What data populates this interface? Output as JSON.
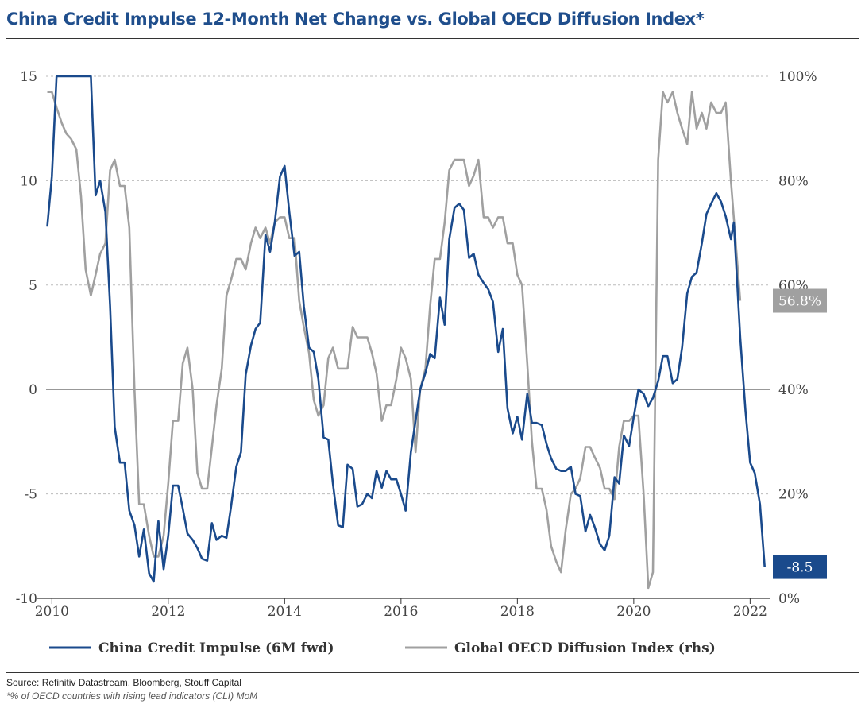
{
  "title": "China Credit Impulse 12-Month Net Change vs. Global OECD Diffusion Index*",
  "source": "Source: Refinitiv Datastream, Bloomberg, Stouff Capital",
  "footnote": "*% of OECD countries with rising lead indicators (CLI) MoM",
  "chart_data": {
    "type": "line",
    "title": "China Credit Impulse 12-Month Net Change vs. Global OECD Diffusion Index*",
    "x_ticks": [
      "2010",
      "2012",
      "2014",
      "2016",
      "2018",
      "2020",
      "2022"
    ],
    "y_left": {
      "range": [
        -10,
        15
      ],
      "ticks": [
        "15",
        "10",
        "5",
        "0",
        "-5",
        "-10"
      ]
    },
    "y_right": {
      "range": [
        0,
        100
      ],
      "ticks": [
        "100%",
        "80%",
        "60%",
        "40%",
        "20%",
        "0%"
      ]
    },
    "grid": true,
    "legend_position": "bottom",
    "colors": {
      "credit": "#1a4a8c",
      "oecd": "#a0a0a0",
      "title": "#1f4e8c"
    },
    "series": [
      {
        "name": "China Credit Impulse (6M fwd)",
        "axis": "left",
        "end_label": "-8.5",
        "points": [
          [
            2009.92,
            7.8
          ],
          [
            2010.0,
            10.2
          ],
          [
            2010.08,
            15.0
          ],
          [
            2010.17,
            15.0
          ],
          [
            2010.5,
            15.0
          ],
          [
            2010.67,
            15.0
          ],
          [
            2010.75,
            9.3
          ],
          [
            2010.83,
            10.0
          ],
          [
            2010.92,
            8.5
          ],
          [
            2011.0,
            4.0
          ],
          [
            2011.08,
            -1.8
          ],
          [
            2011.17,
            -3.5
          ],
          [
            2011.25,
            -3.5
          ],
          [
            2011.33,
            -5.8
          ],
          [
            2011.42,
            -6.5
          ],
          [
            2011.5,
            -8.0
          ],
          [
            2011.58,
            -6.7
          ],
          [
            2011.67,
            -8.8
          ],
          [
            2011.75,
            -9.2
          ],
          [
            2011.83,
            -6.3
          ],
          [
            2011.92,
            -8.6
          ],
          [
            2012.0,
            -7.0
          ],
          [
            2012.08,
            -4.6
          ],
          [
            2012.17,
            -4.6
          ],
          [
            2012.25,
            -5.7
          ],
          [
            2012.33,
            -6.9
          ],
          [
            2012.42,
            -7.2
          ],
          [
            2012.5,
            -7.6
          ],
          [
            2012.58,
            -8.1
          ],
          [
            2012.67,
            -8.2
          ],
          [
            2012.75,
            -6.4
          ],
          [
            2012.83,
            -7.2
          ],
          [
            2012.92,
            -7.0
          ],
          [
            2013.0,
            -7.1
          ],
          [
            2013.08,
            -5.6
          ],
          [
            2013.17,
            -3.7
          ],
          [
            2013.25,
            -3.0
          ],
          [
            2013.33,
            0.7
          ],
          [
            2013.42,
            2.1
          ],
          [
            2013.5,
            2.9
          ],
          [
            2013.58,
            3.2
          ],
          [
            2013.67,
            7.4
          ],
          [
            2013.75,
            6.6
          ],
          [
            2013.83,
            8.0
          ],
          [
            2013.92,
            10.2
          ],
          [
            2014.0,
            10.7
          ],
          [
            2014.08,
            8.5
          ],
          [
            2014.17,
            6.4
          ],
          [
            2014.25,
            6.6
          ],
          [
            2014.33,
            4.0
          ],
          [
            2014.42,
            2.0
          ],
          [
            2014.5,
            1.8
          ],
          [
            2014.58,
            0.5
          ],
          [
            2014.67,
            -2.3
          ],
          [
            2014.75,
            -2.4
          ],
          [
            2014.83,
            -4.5
          ],
          [
            2014.92,
            -6.5
          ],
          [
            2015.0,
            -6.6
          ],
          [
            2015.08,
            -3.6
          ],
          [
            2015.17,
            -3.8
          ],
          [
            2015.25,
            -5.6
          ],
          [
            2015.33,
            -5.5
          ],
          [
            2015.42,
            -5.0
          ],
          [
            2015.5,
            -5.2
          ],
          [
            2015.58,
            -3.9
          ],
          [
            2015.67,
            -4.7
          ],
          [
            2015.75,
            -3.9
          ],
          [
            2015.83,
            -4.3
          ],
          [
            2015.92,
            -4.3
          ],
          [
            2016.0,
            -5.0
          ],
          [
            2016.08,
            -5.8
          ],
          [
            2016.17,
            -3.0
          ],
          [
            2016.25,
            -1.5
          ],
          [
            2016.33,
            0.0
          ],
          [
            2016.42,
            0.8
          ],
          [
            2016.5,
            1.7
          ],
          [
            2016.58,
            1.5
          ],
          [
            2016.67,
            4.4
          ],
          [
            2016.75,
            3.1
          ],
          [
            2016.83,
            7.2
          ],
          [
            2016.92,
            8.7
          ],
          [
            2017.0,
            8.9
          ],
          [
            2017.08,
            8.6
          ],
          [
            2017.17,
            6.3
          ],
          [
            2017.25,
            6.5
          ],
          [
            2017.33,
            5.5
          ],
          [
            2017.42,
            5.1
          ],
          [
            2017.5,
            4.8
          ],
          [
            2017.58,
            4.2
          ],
          [
            2017.67,
            1.8
          ],
          [
            2017.75,
            2.9
          ],
          [
            2017.83,
            -0.9
          ],
          [
            2017.92,
            -2.1
          ],
          [
            2018.0,
            -1.3
          ],
          [
            2018.08,
            -2.4
          ],
          [
            2018.17,
            -0.2
          ],
          [
            2018.25,
            -1.6
          ],
          [
            2018.33,
            -1.6
          ],
          [
            2018.42,
            -1.7
          ],
          [
            2018.5,
            -2.6
          ],
          [
            2018.58,
            -3.3
          ],
          [
            2018.67,
            -3.8
          ],
          [
            2018.75,
            -3.9
          ],
          [
            2018.83,
            -3.9
          ],
          [
            2018.92,
            -3.7
          ],
          [
            2019.0,
            -5.0
          ],
          [
            2019.08,
            -5.1
          ],
          [
            2019.17,
            -6.8
          ],
          [
            2019.25,
            -6.0
          ],
          [
            2019.33,
            -6.6
          ],
          [
            2019.42,
            -7.4
          ],
          [
            2019.5,
            -7.7
          ],
          [
            2019.58,
            -7.0
          ],
          [
            2019.67,
            -4.2
          ],
          [
            2019.75,
            -4.5
          ],
          [
            2019.83,
            -2.2
          ],
          [
            2019.92,
            -2.7
          ],
          [
            2020.0,
            -1.3
          ],
          [
            2020.08,
            0.0
          ],
          [
            2020.17,
            -0.2
          ],
          [
            2020.25,
            -0.8
          ],
          [
            2020.33,
            -0.4
          ],
          [
            2020.42,
            0.4
          ],
          [
            2020.5,
            1.6
          ],
          [
            2020.58,
            1.6
          ],
          [
            2020.67,
            0.3
          ],
          [
            2020.75,
            0.5
          ],
          [
            2020.83,
            2.0
          ],
          [
            2020.92,
            4.6
          ],
          [
            2021.0,
            5.4
          ],
          [
            2021.08,
            5.6
          ],
          [
            2021.17,
            7.0
          ],
          [
            2021.25,
            8.4
          ],
          [
            2021.33,
            8.9
          ],
          [
            2021.42,
            9.4
          ],
          [
            2021.5,
            9.0
          ],
          [
            2021.58,
            8.3
          ],
          [
            2021.67,
            7.2
          ],
          [
            2021.72,
            8.0
          ],
          [
            2021.83,
            2.5
          ],
          [
            2021.92,
            -1.0
          ],
          [
            2022.0,
            -3.5
          ],
          [
            2022.08,
            -4.0
          ],
          [
            2022.17,
            -5.5
          ],
          [
            2022.25,
            -8.5
          ]
        ]
      },
      {
        "name": "Global OECD Diffusion Index (rhs)",
        "axis": "right",
        "end_label": "56.8%",
        "points": [
          [
            2009.92,
            97
          ],
          [
            2010.0,
            97
          ],
          [
            2010.08,
            94
          ],
          [
            2010.17,
            91
          ],
          [
            2010.25,
            89
          ],
          [
            2010.33,
            88
          ],
          [
            2010.42,
            86
          ],
          [
            2010.5,
            77
          ],
          [
            2010.58,
            63
          ],
          [
            2010.67,
            58
          ],
          [
            2010.75,
            62
          ],
          [
            2010.83,
            66
          ],
          [
            2010.92,
            68
          ],
          [
            2011.0,
            82
          ],
          [
            2011.08,
            84
          ],
          [
            2011.17,
            79
          ],
          [
            2011.25,
            79
          ],
          [
            2011.33,
            71
          ],
          [
            2011.42,
            40
          ],
          [
            2011.5,
            18
          ],
          [
            2011.58,
            18
          ],
          [
            2011.67,
            12
          ],
          [
            2011.75,
            8
          ],
          [
            2011.83,
            8
          ],
          [
            2011.92,
            12
          ],
          [
            2012.0,
            22
          ],
          [
            2012.08,
            34
          ],
          [
            2012.17,
            34
          ],
          [
            2012.25,
            45
          ],
          [
            2012.33,
            48
          ],
          [
            2012.42,
            40
          ],
          [
            2012.5,
            24
          ],
          [
            2012.58,
            21
          ],
          [
            2012.67,
            21
          ],
          [
            2012.75,
            29
          ],
          [
            2012.83,
            37
          ],
          [
            2012.92,
            44
          ],
          [
            2013.0,
            58
          ],
          [
            2013.08,
            61
          ],
          [
            2013.17,
            65
          ],
          [
            2013.25,
            65
          ],
          [
            2013.33,
            63
          ],
          [
            2013.42,
            68
          ],
          [
            2013.5,
            71
          ],
          [
            2013.58,
            69
          ],
          [
            2013.67,
            71
          ],
          [
            2013.75,
            68
          ],
          [
            2013.83,
            72
          ],
          [
            2013.92,
            73
          ],
          [
            2014.0,
            73
          ],
          [
            2014.08,
            69
          ],
          [
            2014.17,
            69
          ],
          [
            2014.25,
            57
          ],
          [
            2014.33,
            52
          ],
          [
            2014.42,
            47
          ],
          [
            2014.5,
            38
          ],
          [
            2014.58,
            35
          ],
          [
            2014.67,
            37
          ],
          [
            2014.75,
            46
          ],
          [
            2014.83,
            48
          ],
          [
            2014.92,
            44
          ],
          [
            2015.0,
            44
          ],
          [
            2015.08,
            44
          ],
          [
            2015.17,
            52
          ],
          [
            2015.25,
            50
          ],
          [
            2015.33,
            50
          ],
          [
            2015.42,
            50
          ],
          [
            2015.5,
            47
          ],
          [
            2015.58,
            43
          ],
          [
            2015.67,
            34
          ],
          [
            2015.75,
            37
          ],
          [
            2015.83,
            37
          ],
          [
            2015.92,
            42
          ],
          [
            2016.0,
            48
          ],
          [
            2016.08,
            46
          ],
          [
            2016.17,
            42
          ],
          [
            2016.25,
            28
          ],
          [
            2016.33,
            40
          ],
          [
            2016.42,
            44
          ],
          [
            2016.5,
            56
          ],
          [
            2016.58,
            65
          ],
          [
            2016.67,
            65
          ],
          [
            2016.75,
            72
          ],
          [
            2016.83,
            82
          ],
          [
            2016.92,
            84
          ],
          [
            2017.0,
            84
          ],
          [
            2017.08,
            84
          ],
          [
            2017.17,
            79
          ],
          [
            2017.25,
            81
          ],
          [
            2017.33,
            84
          ],
          [
            2017.42,
            73
          ],
          [
            2017.5,
            73
          ],
          [
            2017.58,
            71
          ],
          [
            2017.67,
            73
          ],
          [
            2017.75,
            73
          ],
          [
            2017.83,
            68
          ],
          [
            2017.92,
            68
          ],
          [
            2018.0,
            62
          ],
          [
            2018.08,
            60
          ],
          [
            2018.17,
            45
          ],
          [
            2018.25,
            30
          ],
          [
            2018.33,
            21
          ],
          [
            2018.42,
            21
          ],
          [
            2018.5,
            17
          ],
          [
            2018.58,
            10
          ],
          [
            2018.67,
            7
          ],
          [
            2018.75,
            5
          ],
          [
            2018.83,
            13
          ],
          [
            2018.92,
            20
          ],
          [
            2019.0,
            21
          ],
          [
            2019.08,
            23
          ],
          [
            2019.17,
            29
          ],
          [
            2019.25,
            29
          ],
          [
            2019.33,
            27
          ],
          [
            2019.42,
            25
          ],
          [
            2019.5,
            21
          ],
          [
            2019.58,
            21
          ],
          [
            2019.67,
            19
          ],
          [
            2019.75,
            29
          ],
          [
            2019.83,
            34
          ],
          [
            2019.92,
            34
          ],
          [
            2020.0,
            35
          ],
          [
            2020.08,
            35
          ],
          [
            2020.17,
            20
          ],
          [
            2020.25,
            2
          ],
          [
            2020.33,
            5
          ],
          [
            2020.42,
            84
          ],
          [
            2020.5,
            97
          ],
          [
            2020.58,
            95
          ],
          [
            2020.67,
            97
          ],
          [
            2020.75,
            93
          ],
          [
            2020.83,
            90
          ],
          [
            2020.92,
            87
          ],
          [
            2021.0,
            97
          ],
          [
            2021.08,
            90
          ],
          [
            2021.17,
            93
          ],
          [
            2021.25,
            90
          ],
          [
            2021.33,
            95
          ],
          [
            2021.42,
            93
          ],
          [
            2021.5,
            93
          ],
          [
            2021.58,
            95
          ],
          [
            2021.67,
            80
          ],
          [
            2021.83,
            57
          ]
        ]
      }
    ]
  }
}
